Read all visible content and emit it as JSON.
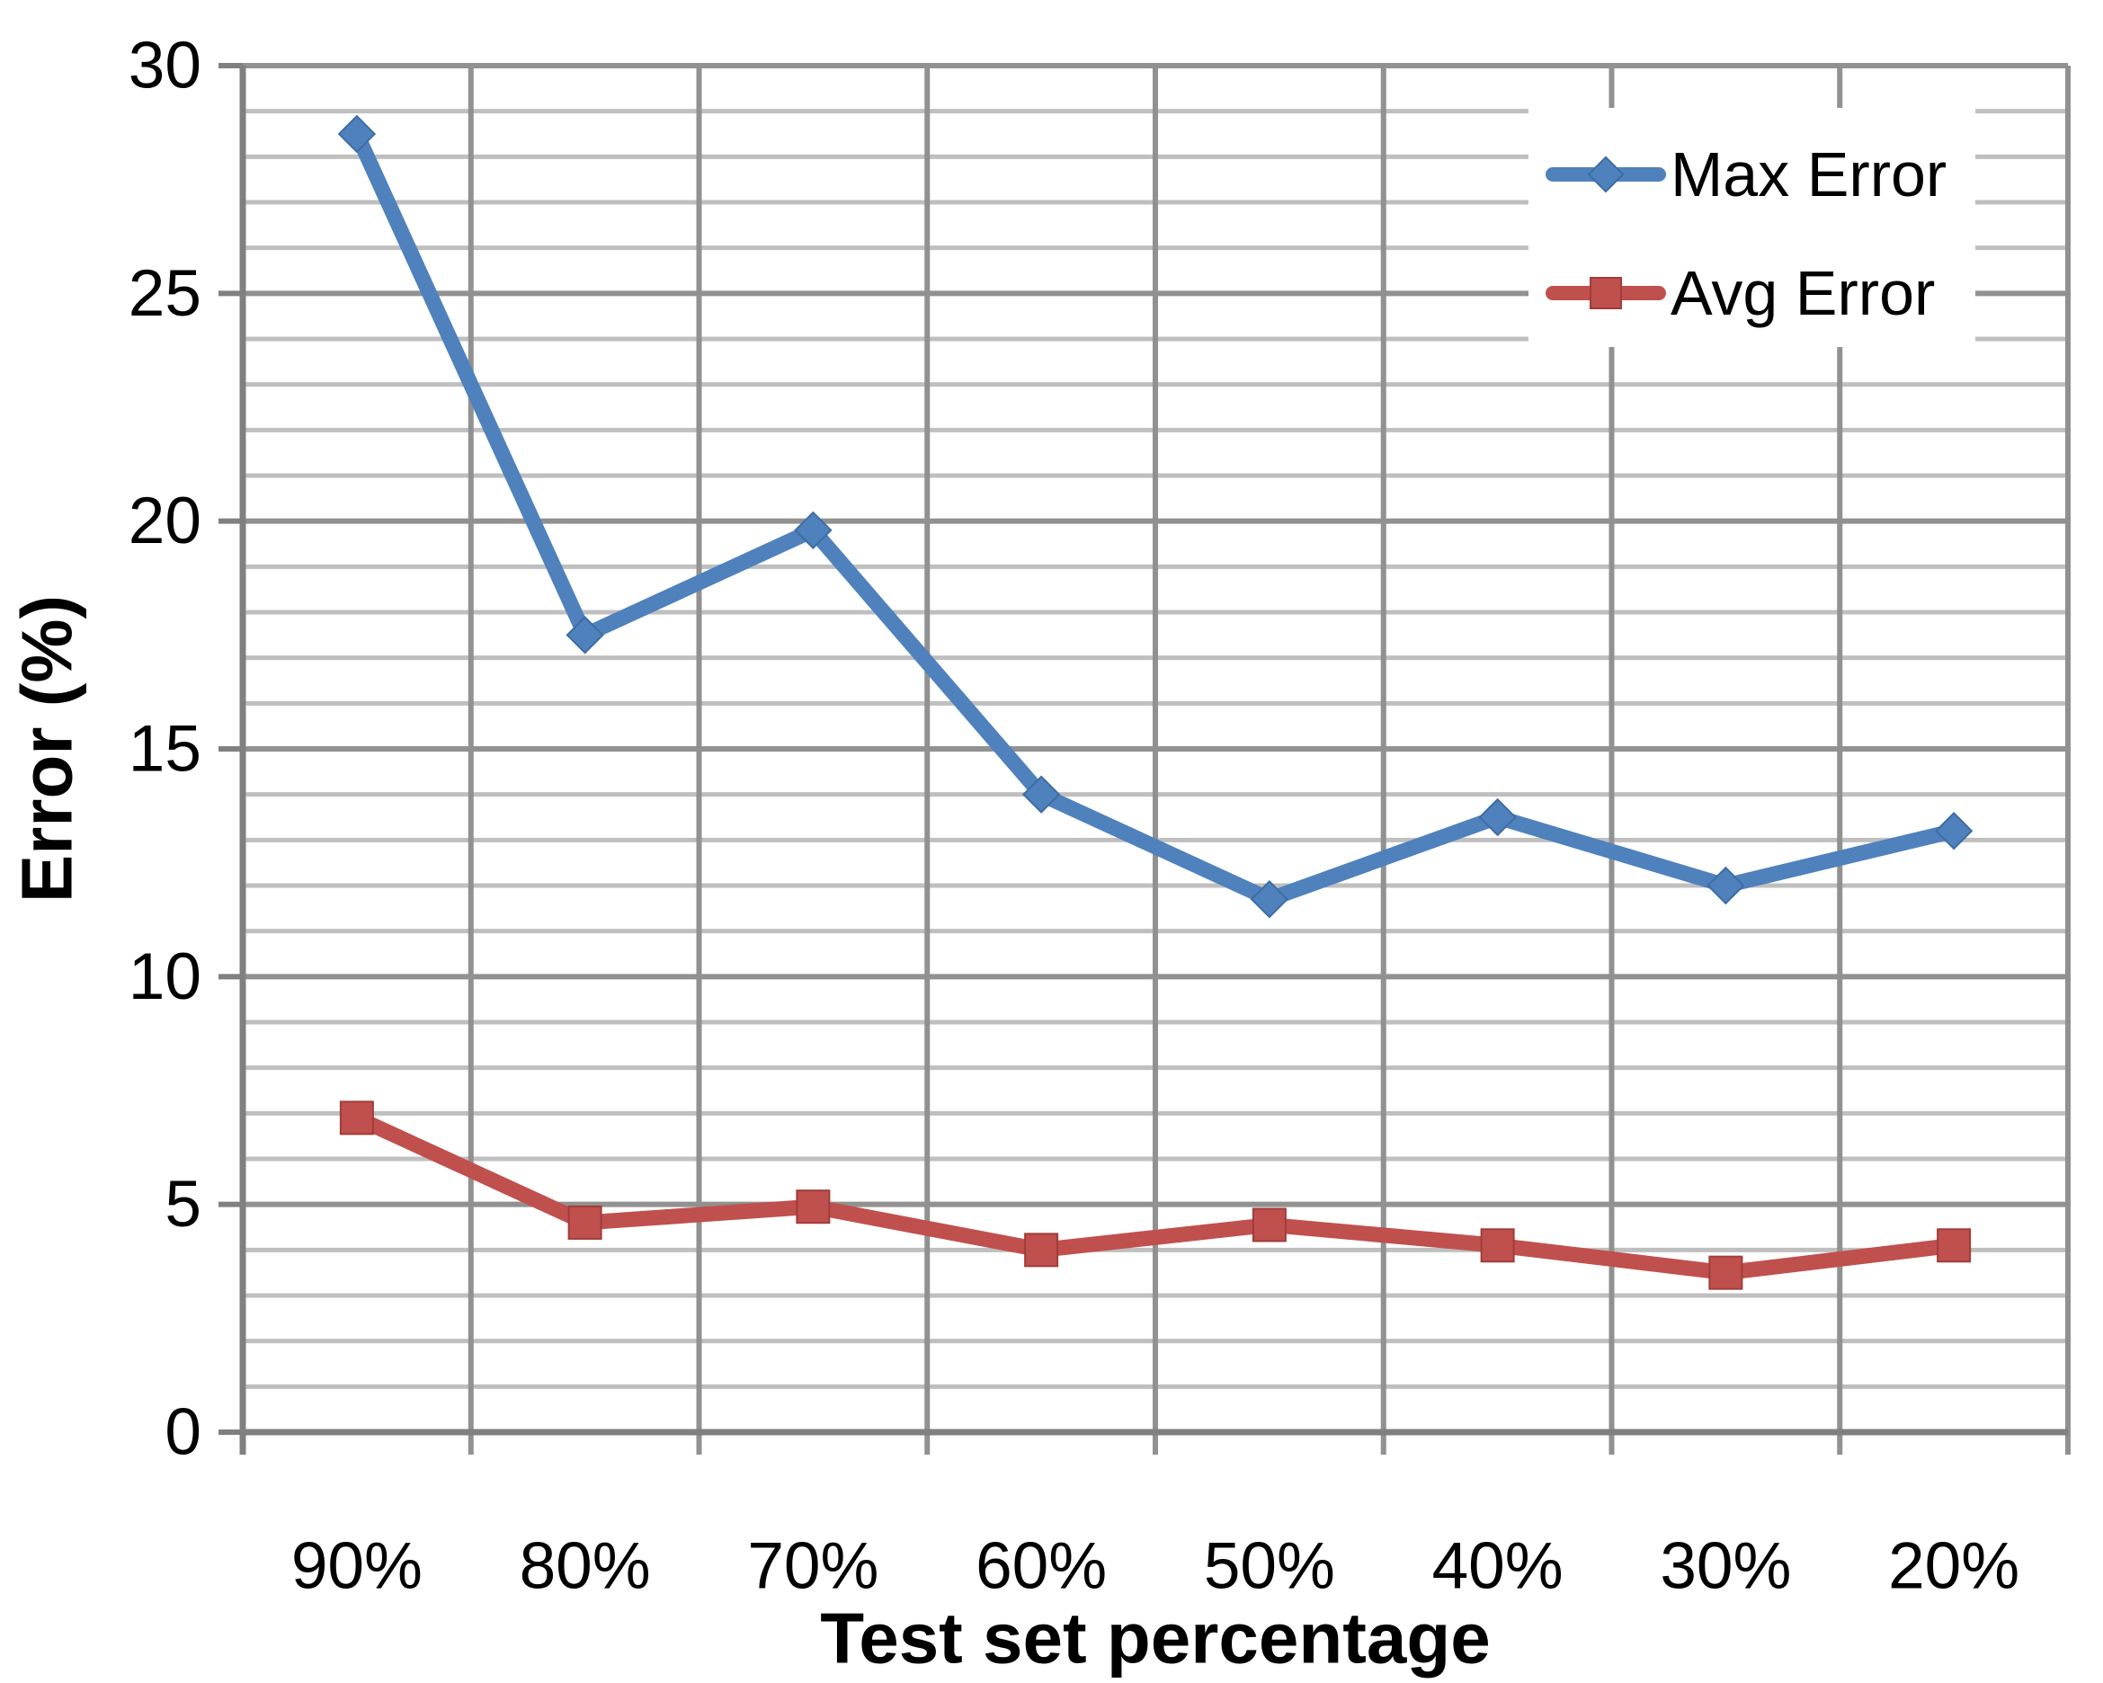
{
  "chart_data": {
    "type": "line",
    "title": "",
    "categories": [
      "90%",
      "80%",
      "70%",
      "60%",
      "50%",
      "40%",
      "30%",
      "20%"
    ],
    "series": [
      {
        "name": "Max Error",
        "color": "#4F81BD",
        "edge_color": "#3D6DA3",
        "marker": "diamond",
        "values": [
          28.5,
          17.5,
          19.8,
          14.0,
          11.7,
          13.5,
          12.0,
          13.2
        ]
      },
      {
        "name": "Avg Error",
        "color": "#C0504D",
        "edge_color": "#A03C39",
        "marker": "square",
        "values": [
          6.9,
          4.6,
          4.95,
          4.0,
          4.55,
          4.1,
          3.5,
          4.1
        ]
      }
    ],
    "xlabel": "Test set percentage",
    "ylabel": "Error (%)",
    "ylim": [
      0,
      30
    ],
    "y_major_ticks": [
      0,
      5,
      10,
      15,
      20,
      25,
      30
    ],
    "y_minor_step": 1,
    "grid": {
      "minor_color": "#BFBFBF",
      "major_color": "#919191",
      "axis_color": "#808080"
    },
    "legend": {
      "position": "top-right",
      "background": "#FFFFFF"
    },
    "background": "#FFFFFF"
  }
}
